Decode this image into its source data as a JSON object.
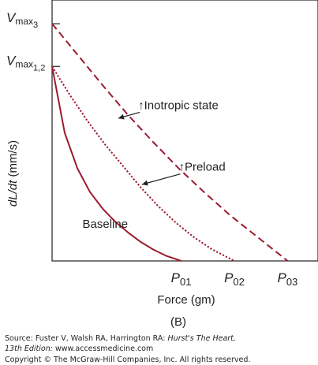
{
  "chart_data": {
    "type": "line",
    "panel_label": "(B)",
    "xlabel": "Force (gm)",
    "ylabel": {
      "italic": "dL/dt",
      "rest": " (mm/s)"
    },
    "y_ticks": [
      {
        "main": "V",
        "sub": "max",
        "subsub": "3",
        "value": 1.0
      },
      {
        "main": "V",
        "sub": "max",
        "subsub": "1,2",
        "value": 0.82
      }
    ],
    "x_ticks": [
      {
        "main": "P",
        "sub": "01",
        "value": 0.51
      },
      {
        "main": "P",
        "sub": "02",
        "value": 0.72
      },
      {
        "main": "P",
        "sub": "03",
        "value": 0.93
      }
    ],
    "xlim": [
      0,
      1.05
    ],
    "ylim": [
      0,
      1.1
    ],
    "grid": false,
    "series": [
      {
        "name": "Baseline",
        "style": "solid",
        "color": "#9b1b30",
        "label_at": {
          "x": 0.12,
          "y": 0.14
        },
        "points": [
          [
            0,
            0.82
          ],
          [
            0.05,
            0.54
          ],
          [
            0.1,
            0.39
          ],
          [
            0.15,
            0.29
          ],
          [
            0.2,
            0.22
          ],
          [
            0.25,
            0.165
          ],
          [
            0.3,
            0.12
          ],
          [
            0.35,
            0.08
          ],
          [
            0.4,
            0.048
          ],
          [
            0.45,
            0.022
          ],
          [
            0.51,
            0
          ]
        ]
      },
      {
        "name": "Preload",
        "arrow": "↑",
        "style": "dotted",
        "color": "#9b1b30",
        "label_at": {
          "x": 0.5,
          "y": 0.38
        },
        "points": [
          [
            0,
            0.82
          ],
          [
            0.07,
            0.7
          ],
          [
            0.14,
            0.59
          ],
          [
            0.21,
            0.49
          ],
          [
            0.28,
            0.4
          ],
          [
            0.35,
            0.31
          ],
          [
            0.42,
            0.23
          ],
          [
            0.49,
            0.16
          ],
          [
            0.56,
            0.1
          ],
          [
            0.63,
            0.05
          ],
          [
            0.72,
            0
          ]
        ]
      },
      {
        "name": "Inotropic state",
        "arrow": "↑",
        "style": "dashed",
        "color": "#9b1b30",
        "label_at": {
          "x": 0.34,
          "y": 0.64
        },
        "points": [
          [
            0,
            1.0
          ],
          [
            0.1,
            0.87
          ],
          [
            0.2,
            0.74
          ],
          [
            0.3,
            0.615
          ],
          [
            0.4,
            0.5
          ],
          [
            0.5,
            0.39
          ],
          [
            0.6,
            0.29
          ],
          [
            0.7,
            0.195
          ],
          [
            0.8,
            0.11
          ],
          [
            0.93,
            0
          ]
        ]
      }
    ]
  },
  "source": {
    "line1_prefix": "Source: Fuster V, Walsh RA, Harrington RA: ",
    "line1_title": "Hurst's The Heart,",
    "line2_edition": "13th Edition:",
    "line2_rest": " www.accessmedicine.com",
    "line3": "Copyright © The McGraw-Hill Companies, Inc. All rights reserved."
  }
}
